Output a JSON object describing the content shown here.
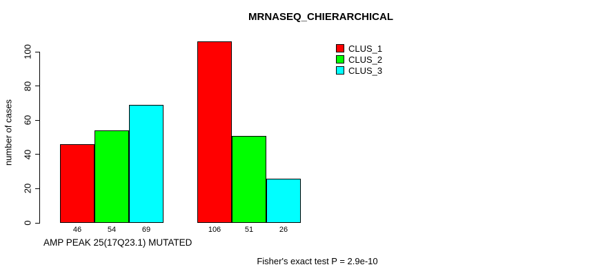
{
  "chart_data": {
    "type": "bar",
    "title": "MRNASEQ_CHIERARCHICAL",
    "ylabel": "number of cases",
    "xlabel": "AMP PEAK 25(17Q23.1) MUTATED",
    "footnote": "Fisher's exact test P = 2.9e-10",
    "yticks": [
      0,
      20,
      40,
      60,
      80,
      100
    ],
    "ylim": [
      0,
      100
    ],
    "grid": false,
    "legend_position": "top-right",
    "background_color": "#ffffff",
    "axis_color": "#000000",
    "bar_border_color": "#000000",
    "series": [
      {
        "name": "CLUS_1",
        "color": "#ff0000",
        "values": [
          46,
          106
        ]
      },
      {
        "name": "CLUS_2",
        "color": "#00ff00",
        "values": [
          54,
          51
        ]
      },
      {
        "name": "CLUS_3",
        "color": "#00ffff",
        "values": [
          69,
          26
        ]
      }
    ],
    "bar_labels": [
      [
        "46",
        "54",
        "69"
      ],
      [
        "106",
        "51",
        "26"
      ]
    ]
  }
}
